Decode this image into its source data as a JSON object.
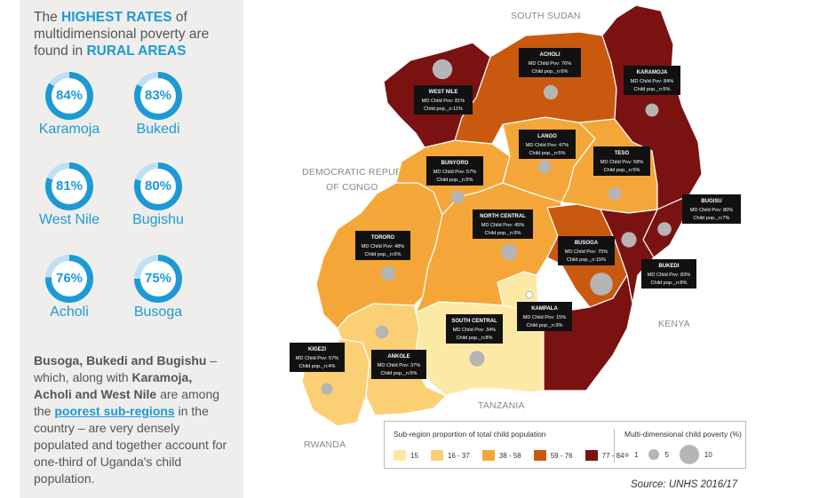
{
  "headline": {
    "part1": "The ",
    "highlight1": "HIGHEST RATES",
    "part2": " of multidimensional poverty are found in ",
    "highlight2": "RURAL AREAS"
  },
  "stats": [
    {
      "value": "84%",
      "pct": 84,
      "name": "Karamoja"
    },
    {
      "value": "83%",
      "pct": 83,
      "name": "Bukedi"
    },
    {
      "value": "81%",
      "pct": 81,
      "name": "West Nile"
    },
    {
      "value": "80%",
      "pct": 80,
      "name": "Bugishu"
    },
    {
      "value": "76%",
      "pct": 76,
      "name": "Acholi"
    },
    {
      "value": "75%",
      "pct": 75,
      "name": "Busoga"
    }
  ],
  "body": {
    "b1": "Busoga, Bukedi and Bugishu",
    "t1": " – which, along with ",
    "b2": "Karamoja, Acholi and West Nile",
    "t2": " are among the ",
    "accent": "poorest sub-regions",
    "t3": " in the country – are very densely populated and together account for one-third of Uganda's child population."
  },
  "map": {
    "countries": {
      "south_sudan": "SOUTH SUDAN",
      "drc_1": "DEMOCRATIC REPUBLIC",
      "drc_2": "OF CONGO",
      "kenya": "KENYA",
      "tanzania": "TANZANIA",
      "rwanda": "RWANDA"
    },
    "regions": [
      {
        "id": "west-nile",
        "title": "WEST NILE",
        "l1": "MD Child Pov: 81%",
        "l2": "Child pop._n:11%",
        "band": "77-84",
        "pop_share": 11
      },
      {
        "id": "acholi",
        "title": "ACHOLI",
        "l1": "MD Child Pov: 76%",
        "l2": "Child pop._n:6%",
        "band": "59-76",
        "pop_share": 6
      },
      {
        "id": "karamoja",
        "title": "KARAMOJA",
        "l1": "MD Child Pov: 84%",
        "l2": "Child pop._n:5%",
        "band": "77-84",
        "pop_share": 5
      },
      {
        "id": "lango",
        "title": "LANGO",
        "l1": "MD Child Pov: 47%",
        "l2": "Child pop._n:5%",
        "band": "38-58",
        "pop_share": 5
      },
      {
        "id": "teso",
        "title": "TESO",
        "l1": "MD Child Pov: 58%",
        "l2": "Child pop._n:5%",
        "band": "38-58",
        "pop_share": 5
      },
      {
        "id": "bunyoro",
        "title": "BUNYORO",
        "l1": "MD Child Pov: 57%",
        "l2": "Child pop._n:5%",
        "band": "38-58",
        "pop_share": 5
      },
      {
        "id": "bugisu",
        "title": "BUGISU",
        "l1": "MD Child Pov: 80%",
        "l2": "Child pop._n:7%",
        "band": "77-84",
        "pop_share": 7
      },
      {
        "id": "north-central",
        "title": "NORTH CENTRAL",
        "l1": "MD Child Pov: 45%",
        "l2": "Child pop._n:9%",
        "band": "38-58",
        "pop_share": 9
      },
      {
        "id": "tororo",
        "title": "TORORO",
        "l1": "MD Child Pov: 48%",
        "l2": "Child pop._n:6%",
        "band": "38-58",
        "pop_share": 6
      },
      {
        "id": "busoga",
        "title": "BUSOGA",
        "l1": "MD Child Pov: 75%",
        "l2": "Child pop._n:15%",
        "band": "59-76",
        "pop_share": 15
      },
      {
        "id": "bukedi",
        "title": "BUKEDI",
        "l1": "MD Child Pov: 83%",
        "l2": "Child pop._n:8%",
        "band": "77-84",
        "pop_share": 8
      },
      {
        "id": "kampala",
        "title": "KAMPALA",
        "l1": "MD Child Pov: 15%",
        "l2": "Child pop._n:3%",
        "band": "15",
        "pop_share": 3
      },
      {
        "id": "south-central",
        "title": "SOUTH CENTRAL",
        "l1": "MD Child Pov: 34%",
        "l2": "Child pop._n:8%",
        "band": "16-37",
        "pop_share": 8
      },
      {
        "id": "kigezi",
        "title": "KIGEZI",
        "l1": "MD Child Pov: 57%",
        "l2": "Child pop._n:4%",
        "band": "38-58",
        "pop_share": 4
      },
      {
        "id": "ankole",
        "title": "ANKOLE",
        "l1": "MD Child Pov: 37%",
        "l2": "Child pop._n:5%",
        "band": "16-37",
        "pop_share": 5
      }
    ]
  },
  "legend": {
    "title_left": "Sub-region proportion of total child population",
    "title_right": "Multi-dimensional child poverty (%)",
    "bands": [
      {
        "label": "15",
        "color": "#fde9a6"
      },
      {
        "label": "16 - 37",
        "color": "#fbd075"
      },
      {
        "label": "38 - 58",
        "color": "#f4a738"
      },
      {
        "label": "59 - 76",
        "color": "#c9590f"
      },
      {
        "label": "77 - 84",
        "color": "#7a1212"
      }
    ],
    "bubbles": [
      {
        "label": "1",
        "size": 1
      },
      {
        "label": "5",
        "size": 5
      },
      {
        "label": "10",
        "size": 10
      }
    ]
  },
  "colors": {
    "accent_blue": "#1c9ad6",
    "bubble_gray": "#b5b5b5",
    "callout_black": "#111111"
  },
  "source": "Source: UNHS 2016/17"
}
